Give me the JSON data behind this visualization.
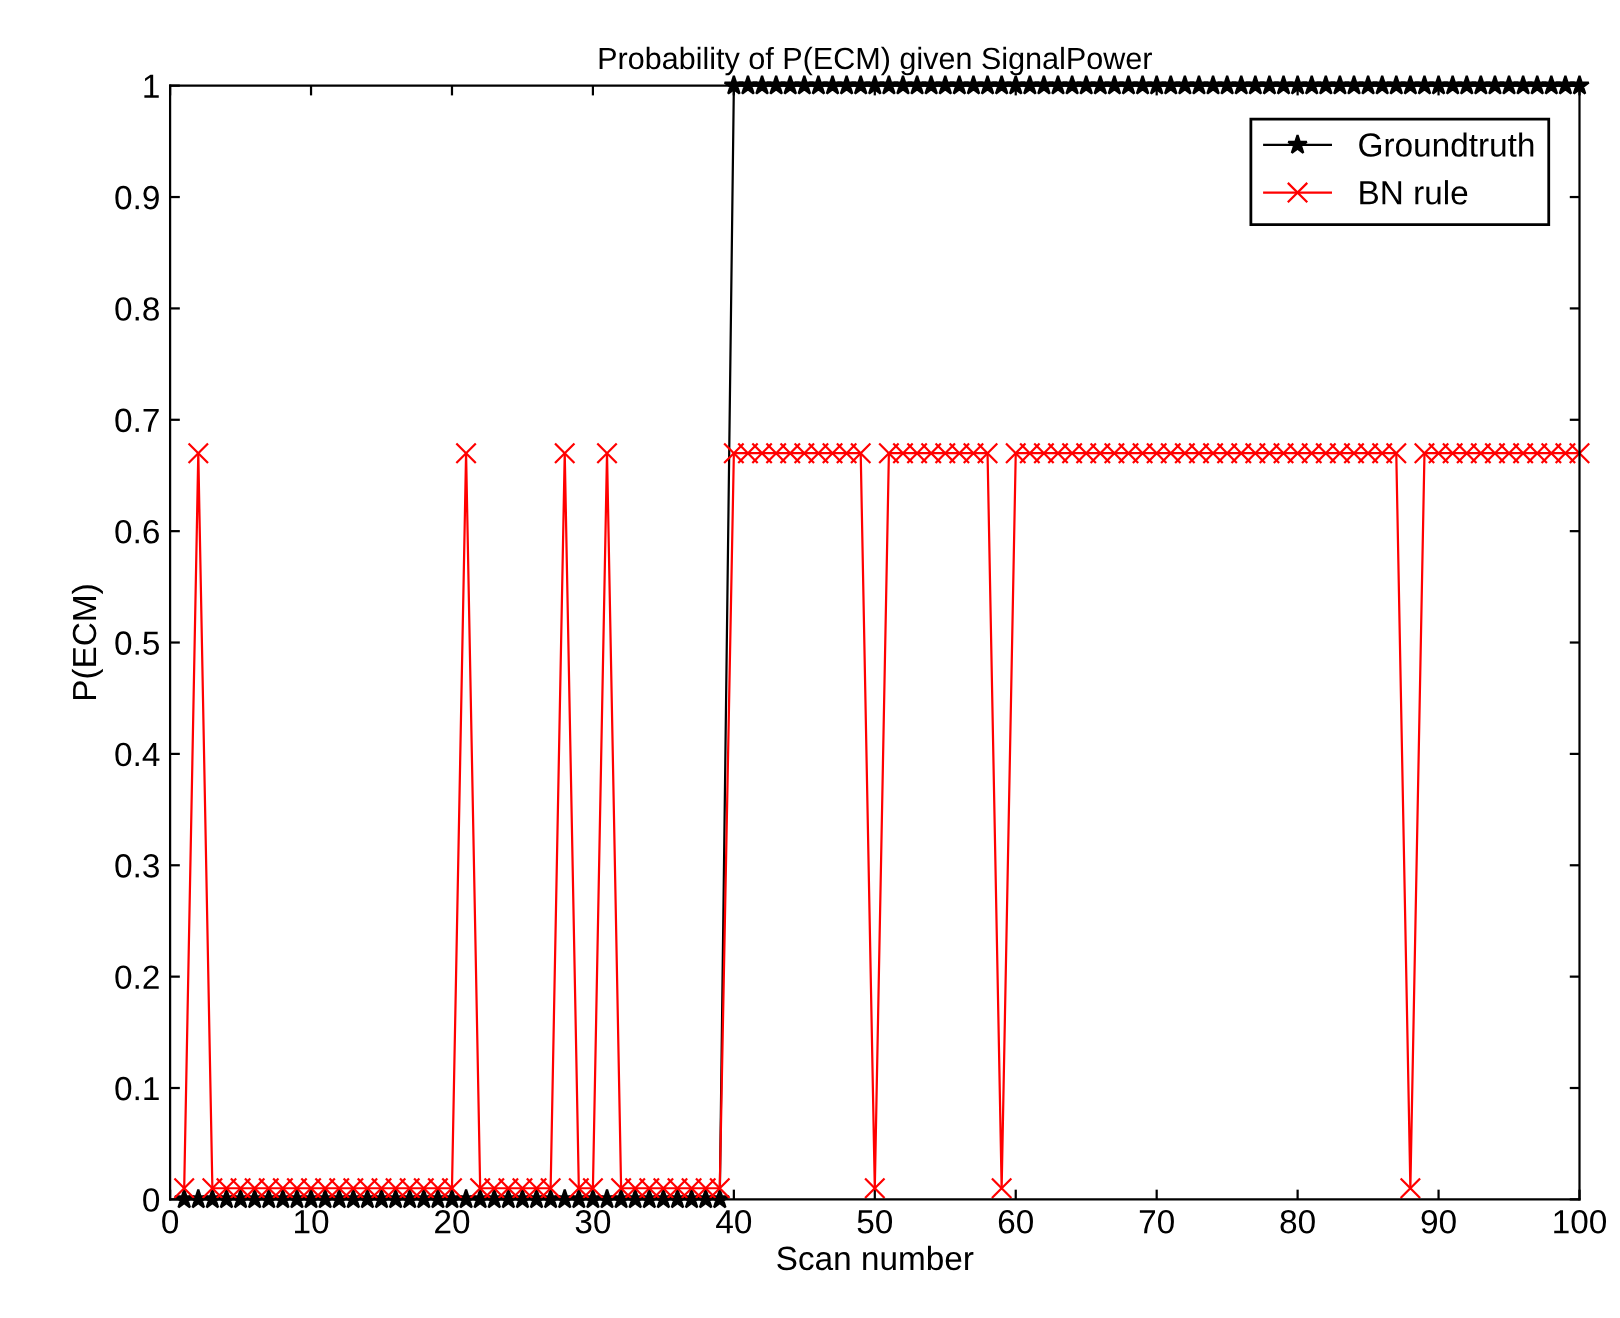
{
  "chart_data": {
    "type": "line",
    "title": "Probability of P(ECM) given SignalPower",
    "xlabel": "Scan number",
    "ylabel": "P(ECM)",
    "x": [
      1,
      2,
      3,
      4,
      5,
      6,
      7,
      8,
      9,
      10,
      11,
      12,
      13,
      14,
      15,
      16,
      17,
      18,
      19,
      20,
      21,
      22,
      23,
      24,
      25,
      26,
      27,
      28,
      29,
      30,
      31,
      32,
      33,
      34,
      35,
      36,
      37,
      38,
      39,
      40,
      41,
      42,
      43,
      44,
      45,
      46,
      47,
      48,
      49,
      50,
      51,
      52,
      53,
      54,
      55,
      56,
      57,
      58,
      59,
      60,
      61,
      62,
      63,
      64,
      65,
      66,
      67,
      68,
      69,
      70,
      71,
      72,
      73,
      74,
      75,
      76,
      77,
      78,
      79,
      80,
      81,
      82,
      83,
      84,
      85,
      86,
      87,
      88,
      89,
      90,
      91,
      92,
      93,
      94,
      95,
      96,
      97,
      98,
      99,
      100
    ],
    "series": [
      {
        "name": "Groundtruth",
        "color": "#000000",
        "marker": "star",
        "values": [
          0,
          0,
          0,
          0,
          0,
          0,
          0,
          0,
          0,
          0,
          0,
          0,
          0,
          0,
          0,
          0,
          0,
          0,
          0,
          0,
          0,
          0,
          0,
          0,
          0,
          0,
          0,
          0,
          0,
          0,
          0,
          0,
          0,
          0,
          0,
          0,
          0,
          0,
          0,
          1,
          1,
          1,
          1,
          1,
          1,
          1,
          1,
          1,
          1,
          1,
          1,
          1,
          1,
          1,
          1,
          1,
          1,
          1,
          1,
          1,
          1,
          1,
          1,
          1,
          1,
          1,
          1,
          1,
          1,
          1,
          1,
          1,
          1,
          1,
          1,
          1,
          1,
          1,
          1,
          1,
          1,
          1,
          1,
          1,
          1,
          1,
          1,
          1,
          1,
          1,
          1,
          1,
          1,
          1,
          1,
          1,
          1,
          1,
          1,
          1
        ]
      },
      {
        "name": "BN rule",
        "color": "#ff0000",
        "marker": "cross",
        "values": [
          0.01,
          0.67,
          0.01,
          0.01,
          0.01,
          0.01,
          0.01,
          0.01,
          0.01,
          0.01,
          0.01,
          0.01,
          0.01,
          0.01,
          0.01,
          0.01,
          0.01,
          0.01,
          0.01,
          0.01,
          0.67,
          0.01,
          0.01,
          0.01,
          0.01,
          0.01,
          0.01,
          0.67,
          0.01,
          0.01,
          0.67,
          0.01,
          0.01,
          0.01,
          0.01,
          0.01,
          0.01,
          0.01,
          0.01,
          0.67,
          0.67,
          0.67,
          0.67,
          0.67,
          0.67,
          0.67,
          0.67,
          0.67,
          0.67,
          0.01,
          0.67,
          0.67,
          0.67,
          0.67,
          0.67,
          0.67,
          0.67,
          0.67,
          0.01,
          0.67,
          0.67,
          0.67,
          0.67,
          0.67,
          0.67,
          0.67,
          0.67,
          0.67,
          0.67,
          0.67,
          0.67,
          0.67,
          0.67,
          0.67,
          0.67,
          0.67,
          0.67,
          0.67,
          0.67,
          0.67,
          0.67,
          0.67,
          0.67,
          0.67,
          0.67,
          0.67,
          0.67,
          0.01,
          0.67,
          0.67,
          0.67,
          0.67,
          0.67,
          0.67,
          0.67,
          0.67,
          0.67,
          0.67,
          0.67,
          0.67
        ]
      }
    ],
    "xlim": [
      0,
      100
    ],
    "xticks": [
      0,
      10,
      20,
      30,
      40,
      50,
      60,
      70,
      80,
      90,
      100
    ],
    "ylim": [
      0,
      1
    ],
    "yticks": [
      0,
      0.1,
      0.2,
      0.3,
      0.4,
      0.5,
      0.6,
      0.7,
      0.8,
      0.9,
      1
    ],
    "legend": "top right",
    "line_style": "solid"
  }
}
